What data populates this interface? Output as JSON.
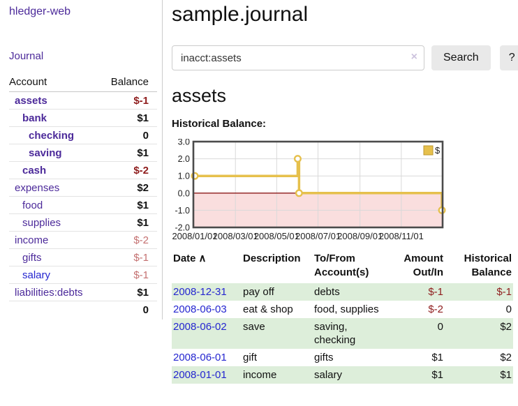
{
  "colors": {
    "accent_purple": "#4c2a9a",
    "link_blue": "#2526d0",
    "negative_strong": "#8f1d1d",
    "negative_soft": "#c47070",
    "row_green": "#ddeeda",
    "button_gray": "#e9e9e9",
    "chart_gold": "#e6c04c",
    "chart_negative_fill": "#fadede",
    "zero_line": "#8b1818",
    "chart_border": "#4b4b4b",
    "grid": "#d9d9d9"
  },
  "icons": {
    "clear": "×",
    "sort_ascending": "∧",
    "legend_swatch": "square"
  },
  "sidebar": {
    "brand": "hledger-web",
    "journal_label": "Journal",
    "accounts_table": {
      "headers": [
        "Account",
        "Balance"
      ],
      "rows": [
        {
          "name": "assets",
          "depth": 1,
          "bold": true,
          "balance": "$-1",
          "balance_class": "neg-strong"
        },
        {
          "name": "bank",
          "depth": 2,
          "bold": true,
          "balance": "$1",
          "balance_class": ""
        },
        {
          "name": "checking",
          "depth": 3,
          "bold": true,
          "balance": "0",
          "balance_class": ""
        },
        {
          "name": "saving",
          "depth": 3,
          "bold": true,
          "balance": "$1",
          "balance_class": ""
        },
        {
          "name": "cash",
          "depth": 2,
          "bold": true,
          "balance": "$-2",
          "balance_class": "neg-strong"
        },
        {
          "name": "expenses",
          "depth": 1,
          "bold": false,
          "balance": "$2",
          "balance_class": ""
        },
        {
          "name": "food",
          "depth": 2,
          "bold": false,
          "balance": "$1",
          "balance_class": ""
        },
        {
          "name": "supplies",
          "depth": 2,
          "bold": false,
          "balance": "$1",
          "balance_class": ""
        },
        {
          "name": "income",
          "depth": 1,
          "bold": false,
          "balance": "$-2",
          "balance_class": "neg-soft"
        },
        {
          "name": "gifts",
          "depth": 2,
          "bold": false,
          "balance": "$-1",
          "balance_class": "neg-soft"
        },
        {
          "name": "salary",
          "depth": 2,
          "bold": false,
          "blue": true,
          "balance": "$-1",
          "balance_class": "neg-soft"
        },
        {
          "name": "liabilities:debts",
          "depth": 1,
          "bold": false,
          "balance": "$1",
          "balance_class": ""
        }
      ],
      "total": "0"
    }
  },
  "header": {
    "title": "sample.journal"
  },
  "search": {
    "value": "inacct:assets",
    "search_label": "Search",
    "help_label": "?"
  },
  "account_page": {
    "title": "assets",
    "chart_label": "Historical Balance:"
  },
  "chart_data": {
    "type": "line",
    "step": true,
    "title": "Historical Balance",
    "series": [
      {
        "name": "$",
        "color": "#e6c04c",
        "points": [
          {
            "date": "2008-01-01",
            "day": 0,
            "value": 1
          },
          {
            "date": "2008-06-01",
            "day": 152,
            "value": 2
          },
          {
            "date": "2008-06-03",
            "day": 154,
            "value": 0
          },
          {
            "date": "2008-12-31",
            "day": 365,
            "value": -1
          }
        ]
      }
    ],
    "x_ticks": [
      {
        "label": "2008/01/01",
        "day": 0
      },
      {
        "label": "2008/03/01",
        "day": 60
      },
      {
        "label": "2008/05/01",
        "day": 121
      },
      {
        "label": "2008/07/01",
        "day": 182
      },
      {
        "label": "2008/09/01",
        "day": 244
      },
      {
        "label": "2008/11/01",
        "day": 305
      }
    ],
    "y_ticks": [
      3.0,
      2.0,
      1.0,
      0.0,
      -1.0,
      -2.0
    ],
    "ylim": [
      -2,
      3
    ],
    "xlim_days": [
      0,
      366
    ],
    "grid": true,
    "legend_position": "top-right",
    "negative_fill": "#fadede",
    "zero_line_color": "#8b1818"
  },
  "register_table": {
    "columns": [
      {
        "lines": [
          "Date"
        ],
        "sort": true,
        "align": "left"
      },
      {
        "lines": [
          "Description"
        ],
        "align": "left"
      },
      {
        "lines": [
          "To/From",
          "Account(s)"
        ],
        "align": "left"
      },
      {
        "lines": [
          "Amount",
          "Out/In"
        ],
        "align": "right"
      },
      {
        "lines": [
          "Historical",
          "Balance"
        ],
        "align": "right"
      }
    ],
    "rows": [
      {
        "date": "2008-12-31",
        "description": "pay off",
        "accounts": "debts",
        "amount": "$-1",
        "amount_neg": true,
        "balance": "$-1",
        "balance_neg": true
      },
      {
        "date": "2008-06-03",
        "description": "eat & shop",
        "accounts": "food, supplies",
        "amount": "$-2",
        "amount_neg": true,
        "balance": "0",
        "balance_neg": false
      },
      {
        "date": "2008-06-02",
        "description": "save",
        "accounts": "saving, checking",
        "amount": "0",
        "amount_neg": false,
        "balance": "$2",
        "balance_neg": false
      },
      {
        "date": "2008-06-01",
        "description": "gift",
        "accounts": "gifts",
        "amount": "$1",
        "amount_neg": false,
        "balance": "$2",
        "balance_neg": false
      },
      {
        "date": "2008-01-01",
        "description": "income",
        "accounts": "salary",
        "amount": "$1",
        "amount_neg": false,
        "balance": "$1",
        "balance_neg": false
      }
    ]
  }
}
